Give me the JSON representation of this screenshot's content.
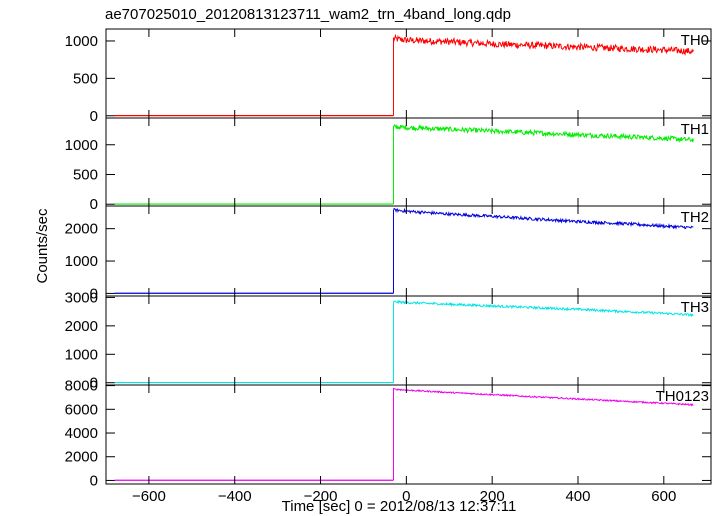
{
  "chart_data": {
    "type": "line",
    "title": "ae707025010_20120813123711_wam2_trn_4band_long.qdp",
    "xlabel": "Time [sec] 0 = 2012/08/13 12:37:11",
    "ylabel": "Counts/sec",
    "xlim": [
      -700,
      710
    ],
    "xticks": [
      -600,
      -400,
      -200,
      0,
      200,
      400,
      600
    ],
    "xtick_labels": [
      "−600",
      "−400",
      "−200",
      "0",
      "200",
      "400",
      "600"
    ],
    "grid": false,
    "panels": [
      {
        "name": "TH0",
        "color": "#ff0000",
        "ylim": [
          -30,
          1160
        ],
        "yticks": [
          0,
          500,
          1000
        ],
        "ytick_labels": [
          "0",
          "500",
          "1000"
        ],
        "x_start": -680,
        "x_step": -30,
        "x_end": 670,
        "baseline": 2,
        "noise_amp": 45,
        "x": [
          -30,
          0,
          100,
          200,
          300,
          400,
          500,
          600,
          670
        ],
        "y": [
          1030,
          1010,
          990,
          960,
          940,
          920,
          900,
          880,
          860
        ]
      },
      {
        "name": "TH1",
        "color": "#00ee00",
        "ylim": [
          -30,
          1450
        ],
        "yticks": [
          0,
          500,
          1000
        ],
        "ytick_labels": [
          "0",
          "500",
          "1000"
        ],
        "x_start": -680,
        "x_step": -30,
        "x_end": 670,
        "baseline": 3,
        "noise_amp": 40,
        "x": [
          -30,
          0,
          100,
          200,
          300,
          400,
          500,
          600,
          670
        ],
        "y": [
          1300,
          1290,
          1260,
          1230,
          1200,
          1170,
          1140,
          1110,
          1080
        ]
      },
      {
        "name": "TH2",
        "color": "#0000dd",
        "ylim": [
          -80,
          2700
        ],
        "yticks": [
          0,
          1000,
          2000
        ],
        "ytick_labels": [
          "0",
          "1000",
          "2000"
        ],
        "x_start": -680,
        "x_step": -30,
        "x_end": 670,
        "baseline": 5,
        "noise_amp": 45,
        "x": [
          -30,
          0,
          100,
          200,
          300,
          400,
          500,
          600,
          670
        ],
        "y": [
          2580,
          2540,
          2450,
          2380,
          2300,
          2220,
          2160,
          2080,
          2030
        ]
      },
      {
        "name": "TH3",
        "color": "#00e5e5",
        "ylim": [
          -80,
          3050
        ],
        "yticks": [
          0,
          1000,
          2000,
          3000
        ],
        "ytick_labels": [
          "0",
          "1000",
          "2000",
          "3000"
        ],
        "x_start": -680,
        "x_step": -30,
        "x_end": 670,
        "baseline": 5,
        "noise_amp": 40,
        "x": [
          -30,
          0,
          100,
          200,
          300,
          400,
          500,
          600,
          670
        ],
        "y": [
          2850,
          2820,
          2760,
          2700,
          2640,
          2580,
          2510,
          2440,
          2380
        ]
      },
      {
        "name": "TH0123",
        "color": "#ee00ee",
        "ylim": [
          -300,
          8050
        ],
        "yticks": [
          0,
          2000,
          4000,
          6000,
          8000
        ],
        "ytick_labels": [
          "0",
          "2000",
          "4000",
          "6000",
          "8000"
        ],
        "x_start": -680,
        "x_step": -30,
        "x_end": 670,
        "baseline": 15,
        "noise_amp": 60,
        "x": [
          -30,
          0,
          100,
          200,
          300,
          400,
          500,
          600,
          670
        ],
        "y": [
          7700,
          7620,
          7420,
          7240,
          7050,
          6870,
          6690,
          6510,
          6380
        ]
      }
    ]
  }
}
